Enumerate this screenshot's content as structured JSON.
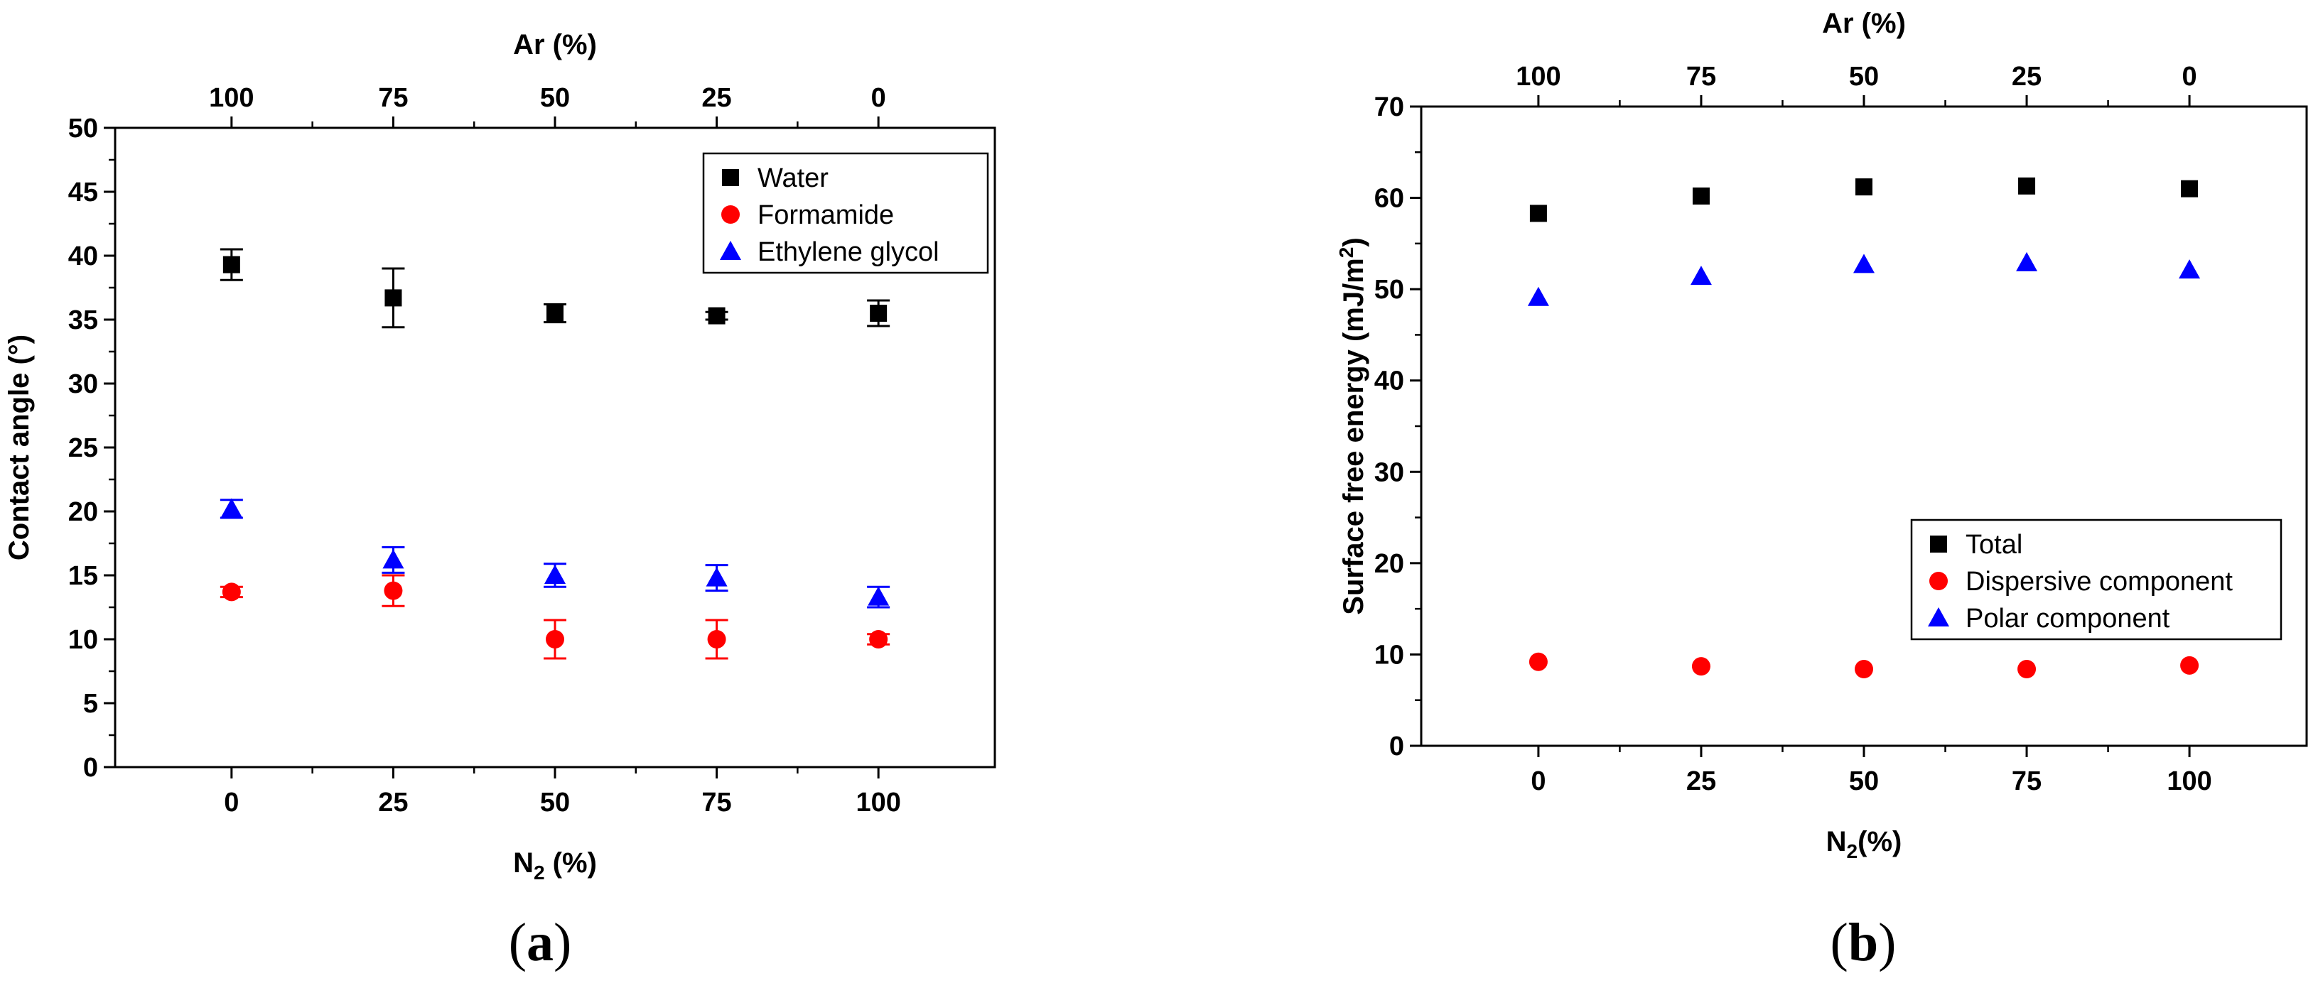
{
  "chart_data": [
    {
      "type": "scatter",
      "caption": "a",
      "xlabel": "N",
      "xlabel_sub": "2",
      "xlabel_suffix": " (%)",
      "x2label": "Ar (%)",
      "ylabel": "Contact angle (°)",
      "xlim": [
        -18,
        118
      ],
      "ylim": [
        0,
        50
      ],
      "xticks": [
        0,
        25,
        50,
        75,
        100
      ],
      "x2ticks": [
        100,
        75,
        50,
        25,
        0
      ],
      "yticks": [
        0,
        5,
        10,
        15,
        20,
        25,
        30,
        35,
        40,
        45,
        50
      ],
      "x": [
        0,
        25,
        50,
        75,
        100
      ],
      "legend_position": "top-right",
      "series": [
        {
          "name": "Water",
          "marker": "square",
          "color": "#000000",
          "values": [
            39.3,
            36.7,
            35.5,
            35.3,
            35.5
          ],
          "errors": [
            1.2,
            2.3,
            0.7,
            0.3,
            1.0
          ]
        },
        {
          "name": "Formamide",
          "marker": "circle",
          "color": "#ff0000",
          "values": [
            13.7,
            13.8,
            10.0,
            10.0,
            10.0
          ],
          "errors": [
            0.4,
            1.2,
            1.5,
            1.5,
            0.4
          ]
        },
        {
          "name": "Ethylene glycol",
          "marker": "triangle",
          "color": "#0000ff",
          "values": [
            20.2,
            16.2,
            15.0,
            14.8,
            13.3
          ],
          "errors": [
            0.7,
            1.0,
            0.9,
            1.0,
            0.8
          ]
        }
      ]
    },
    {
      "type": "scatter",
      "caption": "b",
      "xlabel": "N",
      "xlabel_sub": "2",
      "xlabel_suffix": "(%)",
      "x2label": "Ar (%)",
      "ylabel": "Surface free energy (mJ/m",
      "ylabel_sup": "2",
      "ylabel_suffix": ")",
      "xlim": [
        -18,
        118
      ],
      "ylim": [
        0,
        70
      ],
      "xticks": [
        0,
        25,
        50,
        75,
        100
      ],
      "x2ticks": [
        100,
        75,
        50,
        25,
        0
      ],
      "yticks": [
        0,
        10,
        20,
        30,
        40,
        50,
        60,
        70
      ],
      "x": [
        0,
        25,
        50,
        75,
        100
      ],
      "legend_position": "bottom-right",
      "series": [
        {
          "name": "Total",
          "marker": "square",
          "color": "#000000",
          "values": [
            58.3,
            60.2,
            61.2,
            61.3,
            61.0
          ]
        },
        {
          "name": "Dispersive component",
          "marker": "circle",
          "color": "#ff0000",
          "values": [
            9.2,
            8.7,
            8.4,
            8.4,
            8.8
          ]
        },
        {
          "name": "Polar component",
          "marker": "triangle",
          "color": "#0000ff",
          "values": [
            49.1,
            51.4,
            52.7,
            52.9,
            52.1
          ]
        }
      ]
    }
  ]
}
